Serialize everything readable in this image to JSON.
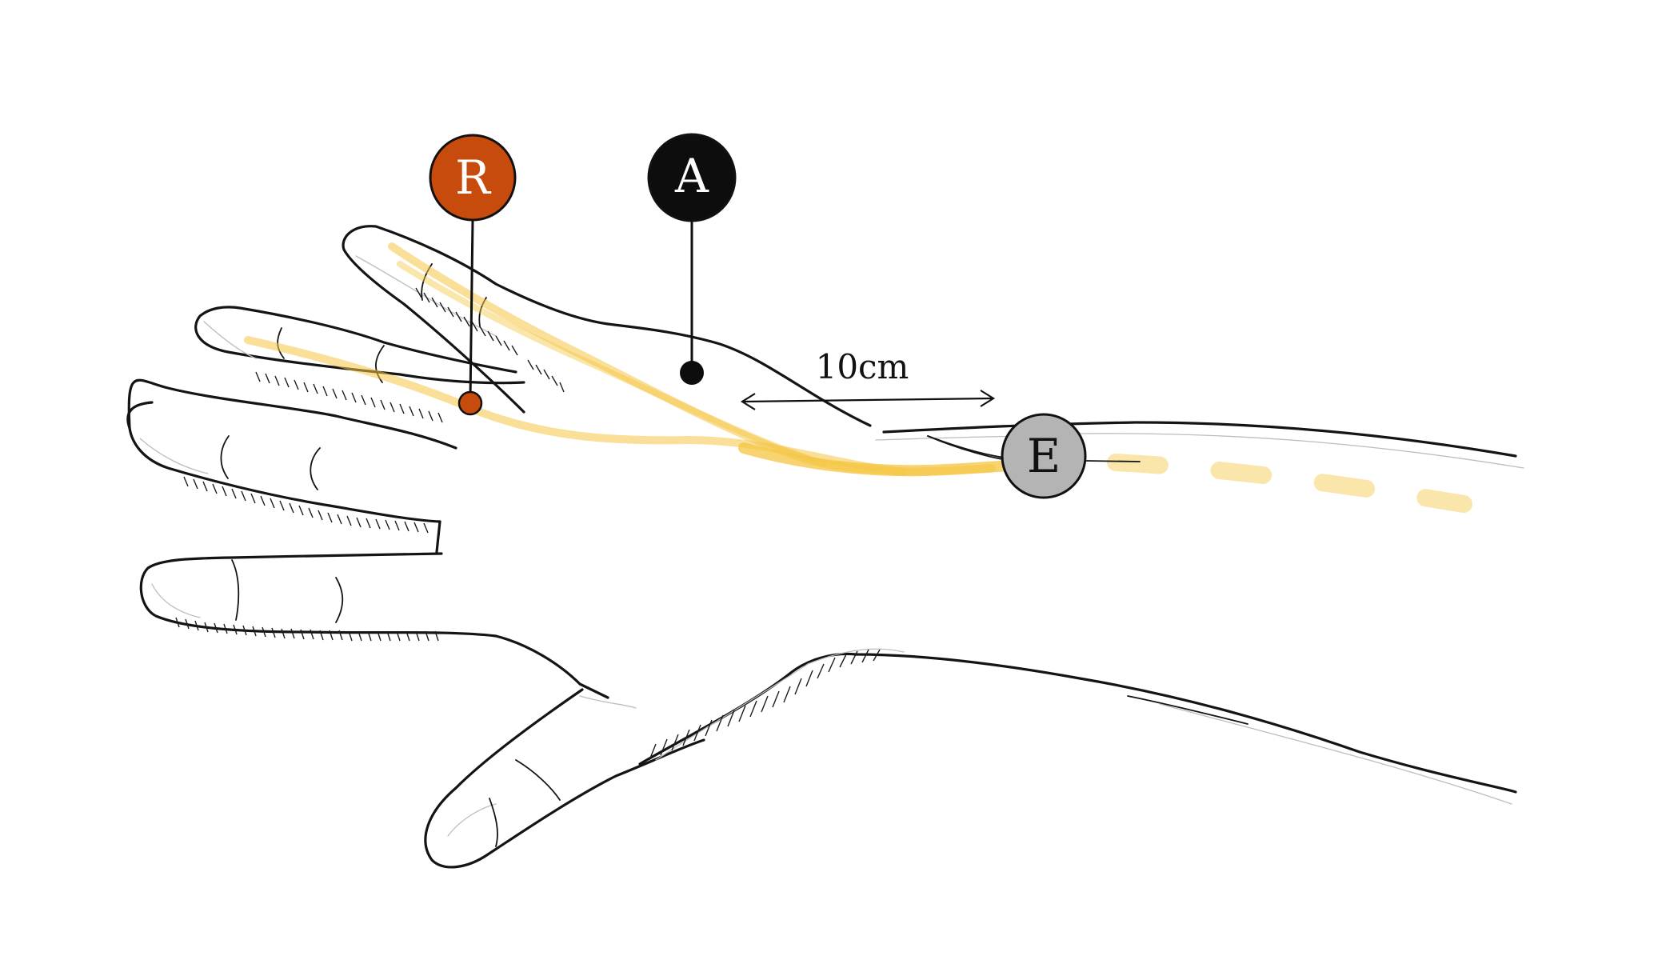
{
  "electrodes": [
    {
      "id": "recording",
      "label": "R",
      "fill": "#c64b0c",
      "text_color": "#ffffff"
    },
    {
      "id": "active",
      "label": "A",
      "fill": "#0d0d0d",
      "text_color": "#ffffff"
    },
    {
      "id": "stimulation",
      "label": "E",
      "fill": "#b4b4b4",
      "text_color": "#111111"
    }
  ],
  "distance_label": "10cm",
  "colors": {
    "nerve": "#f4c542",
    "outline": "#141414",
    "background": "#ffffff"
  }
}
